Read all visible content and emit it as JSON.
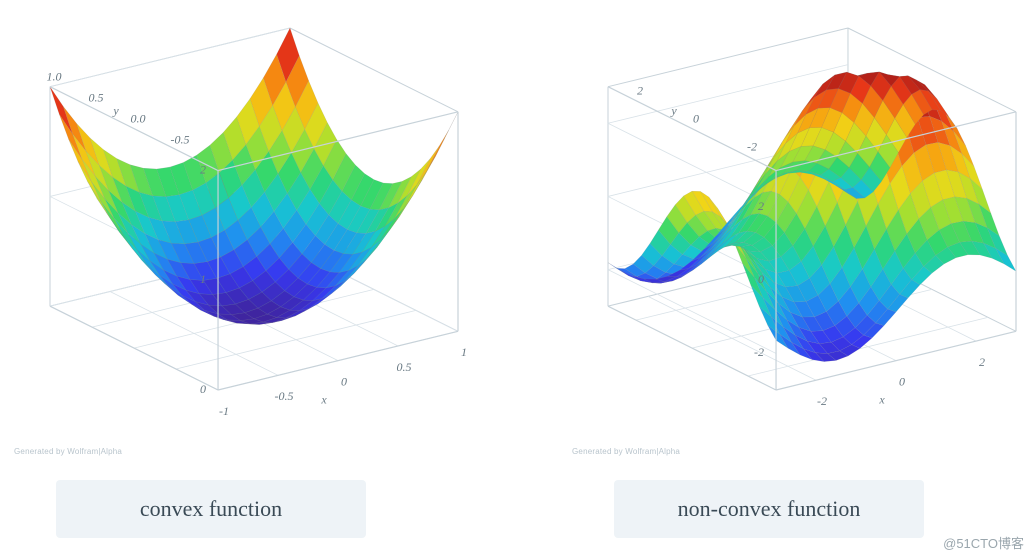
{
  "watermark": "@51CTO博客",
  "palette_comment": "rainbow colormap sampled from image: blue->cyan->green->yellow->orange->red",
  "rainbow_stops": [
    "#40249c",
    "#3838f0",
    "#2090f0",
    "#18c8d0",
    "#30d870",
    "#a8e030",
    "#f0d818",
    "#f89810",
    "#e83818",
    "#a01818"
  ],
  "colors": {
    "background": "#ffffff",
    "caption_bg": "#eef3f7",
    "caption_text": "#3a4a56",
    "box_edge": "#c7d2d9",
    "grid_line": "#d9e2e8",
    "tick_text": "#6a7a84",
    "microcaption": "#b8c4cc",
    "mesh_line": "#888888",
    "mesh_opacity": 0.35
  },
  "left": {
    "caption": "convex function",
    "microcaption": "Generated by Wolfram|Alpha",
    "plot": {
      "type": "surface3d",
      "function": "z = x^2 + y^2",
      "x_range": [
        -1.0,
        1.0
      ],
      "y_range": [
        -1.0,
        1.0
      ],
      "z_range": [
        0.0,
        2.0
      ],
      "x_ticks": [
        -1.0,
        -0.5,
        0.0,
        0.5,
        1.0
      ],
      "y_ticks": [
        -1.0,
        -0.5,
        0.0,
        0.5,
        1.0
      ],
      "y_tick_labels": [
        "",
        "-0.5",
        "0.0",
        "0.5",
        "1.0"
      ],
      "z_ticks": [
        0,
        1,
        2
      ],
      "z_tick_labels": [
        "0",
        "1",
        "2"
      ],
      "x_label": "x",
      "y_label": "y",
      "tick_fontsize": 12,
      "label_fontsize": 13,
      "grid_n": 18,
      "colormap": "rainbow",
      "view": {
        "azimuth_deg": -35,
        "elevation_deg": 25
      }
    }
  },
  "right": {
    "caption": "non-convex function",
    "microcaption": "Generated by Wolfram|Alpha",
    "plot": {
      "type": "surface3d",
      "function": "z = 3*sin(x) + 3*cos(y) (approx)",
      "x_range": [
        -3.0,
        3.0
      ],
      "y_range": [
        -3.0,
        3.0
      ],
      "z_range": [
        -3.0,
        3.0
      ],
      "x_ticks": [
        -2,
        0,
        2
      ],
      "y_ticks": [
        -2,
        0,
        2
      ],
      "z_ticks": [
        -2,
        0,
        2
      ],
      "z_tick_labels": [
        "-2",
        "0",
        "2"
      ],
      "x_label": "x",
      "y_label": "y",
      "tick_fontsize": 12,
      "label_fontsize": 13,
      "grid_n": 20,
      "colormap": "rainbow",
      "view": {
        "azimuth_deg": -35,
        "elevation_deg": 25
      }
    }
  }
}
